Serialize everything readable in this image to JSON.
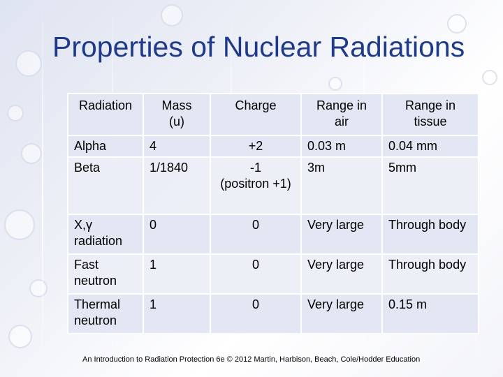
{
  "slide": {
    "title": "Properties of Nuclear Radiations",
    "footer": "An Introduction to Radiation Protection 6e © 2012 Martin, Harbison, Beach, Cole/Hodder Education"
  },
  "table": {
    "headers": [
      [
        "Radiation"
      ],
      [
        "Mass",
        "(u)"
      ],
      [
        "Charge"
      ],
      [
        "Range in",
        "air"
      ],
      [
        "Range in",
        "tissue"
      ]
    ],
    "rows": [
      {
        "radiation": [
          "Alpha"
        ],
        "mass": "4",
        "charge": [
          "+2"
        ],
        "range_air": "0.03 m",
        "range_tissue": "0.04 mm"
      },
      {
        "radiation": [
          "Beta"
        ],
        "mass": "1/1840",
        "charge": [
          "-1",
          "(positron +1)"
        ],
        "range_air": "3m",
        "range_tissue": "5mm"
      },
      {
        "radiation": [
          "X,γ",
          "radiation"
        ],
        "mass": "0",
        "charge": [
          "0"
        ],
        "range_air": "Very large",
        "range_tissue": "Through body"
      },
      {
        "radiation": [
          "Fast",
          "neutron"
        ],
        "mass": "1",
        "charge": [
          "0"
        ],
        "range_air": "Very large",
        "range_tissue": "Through body"
      },
      {
        "radiation": [
          "Thermal",
          "neutron"
        ],
        "mass": "1",
        "charge": [
          "0"
        ],
        "range_air": "Very large",
        "range_tissue": "0.15 m"
      }
    ]
  }
}
